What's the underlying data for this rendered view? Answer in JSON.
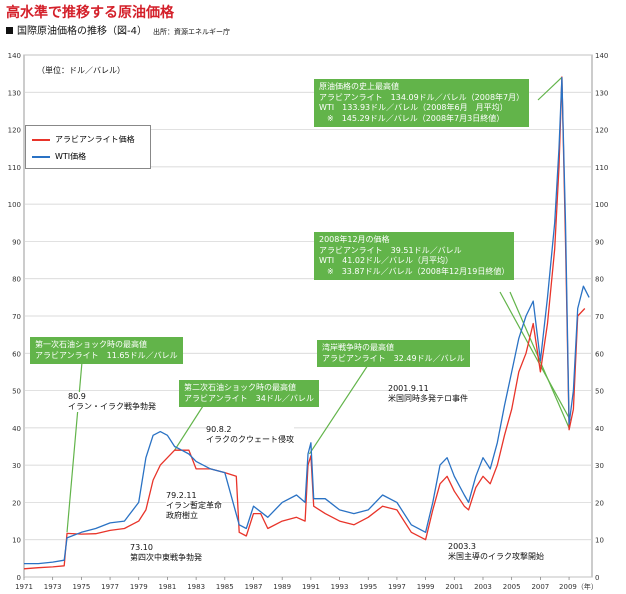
{
  "header": {
    "title": "高水準で推移する原油価格",
    "subtitle": "国際原油価格の推移（図-4）",
    "source": "出所：資源エネルギー庁"
  },
  "chart_data": {
    "type": "line",
    "unit_label": "（単位：ドル／バレル）",
    "ylim": [
      0,
      140
    ],
    "yticks": [
      0,
      10,
      20,
      30,
      40,
      50,
      60,
      70,
      80,
      90,
      100,
      110,
      120,
      130,
      140
    ],
    "xlim": [
      1971,
      2010.6
    ],
    "xticks": [
      1971,
      1973,
      1975,
      1977,
      1979,
      1981,
      1983,
      1985,
      1987,
      1989,
      1991,
      1993,
      1995,
      1997,
      1999,
      2001,
      2003,
      2005,
      2007
    ],
    "xtick_labels": [
      "1971",
      "1973",
      "1975",
      "1977",
      "1979",
      "1981",
      "1983",
      "1985",
      "1987",
      "1989",
      "1991",
      "1993",
      "1995",
      "1997",
      "1999",
      "2001",
      "2003",
      "2005",
      "2007"
    ],
    "x_last_label": "2009（年）",
    "grid": true,
    "legend_position": "upper-left",
    "series": [
      {
        "name": "アラビアンライト価格",
        "color": "#e8342a",
        "points": [
          [
            1971,
            2.2
          ],
          [
            1972,
            2.5
          ],
          [
            1973,
            2.7
          ],
          [
            1973.8,
            3.0
          ],
          [
            1974,
            11.7
          ],
          [
            1975,
            11.5
          ],
          [
            1976,
            11.6
          ],
          [
            1977,
            12.5
          ],
          [
            1978,
            13
          ],
          [
            1979,
            15
          ],
          [
            1979.5,
            18
          ],
          [
            1980,
            26
          ],
          [
            1980.5,
            30
          ],
          [
            1981,
            32
          ],
          [
            1981.5,
            34
          ],
          [
            1982,
            34
          ],
          [
            1982.5,
            34
          ],
          [
            1983,
            29
          ],
          [
            1984,
            29
          ],
          [
            1985,
            28
          ],
          [
            1985.8,
            27
          ],
          [
            1986,
            12
          ],
          [
            1986.5,
            11
          ],
          [
            1987,
            17
          ],
          [
            1987.5,
            17
          ],
          [
            1988,
            13
          ],
          [
            1989,
            15
          ],
          [
            1990,
            16
          ],
          [
            1990.6,
            15
          ],
          [
            1990.8,
            30
          ],
          [
            1991,
            32.5
          ],
          [
            1991.2,
            19
          ],
          [
            1992,
            17
          ],
          [
            1993,
            15
          ],
          [
            1994,
            14
          ],
          [
            1995,
            16
          ],
          [
            1996,
            19
          ],
          [
            1997,
            18
          ],
          [
            1998,
            12
          ],
          [
            1999,
            10
          ],
          [
            1999.5,
            18
          ],
          [
            2000,
            25
          ],
          [
            2000.5,
            27
          ],
          [
            2001,
            23
          ],
          [
            2001.7,
            19
          ],
          [
            2002,
            18
          ],
          [
            2002.5,
            24
          ],
          [
            2003,
            27
          ],
          [
            2003.5,
            25
          ],
          [
            2004,
            30
          ],
          [
            2004.5,
            38
          ],
          [
            2005,
            45
          ],
          [
            2005.5,
            55
          ],
          [
            2006,
            60
          ],
          [
            2006.5,
            68
          ],
          [
            2007,
            55
          ],
          [
            2007.5,
            68
          ],
          [
            2008,
            88
          ],
          [
            2008.3,
            110
          ],
          [
            2008.5,
            134.1
          ],
          [
            2008.75,
            90
          ],
          [
            2009,
            39.5
          ],
          [
            2009.3,
            45
          ],
          [
            2009.6,
            70
          ],
          [
            2010.1,
            72
          ]
        ]
      },
      {
        "name": "WTI価格",
        "color": "#2a72c4",
        "points": [
          [
            1971,
            3.6
          ],
          [
            1972,
            3.6
          ],
          [
            1973,
            4.0
          ],
          [
            1973.8,
            4.5
          ],
          [
            1974,
            10.5
          ],
          [
            1975,
            12.0
          ],
          [
            1976,
            13
          ],
          [
            1977,
            14.5
          ],
          [
            1978,
            15
          ],
          [
            1979,
            20
          ],
          [
            1979.5,
            32
          ],
          [
            1980,
            38
          ],
          [
            1980.5,
            39
          ],
          [
            1981,
            38
          ],
          [
            1981.5,
            35
          ],
          [
            1982,
            34
          ],
          [
            1982.5,
            33
          ],
          [
            1983,
            31
          ],
          [
            1984,
            29
          ],
          [
            1985,
            28
          ],
          [
            1986,
            14
          ],
          [
            1986.5,
            13
          ],
          [
            1987,
            19
          ],
          [
            1988,
            16
          ],
          [
            1989,
            20
          ],
          [
            1990,
            22
          ],
          [
            1990.6,
            20
          ],
          [
            1990.8,
            33
          ],
          [
            1991,
            36
          ],
          [
            1991.2,
            21
          ],
          [
            1992,
            21
          ],
          [
            1993,
            18
          ],
          [
            1994,
            17
          ],
          [
            1995,
            18
          ],
          [
            1996,
            22
          ],
          [
            1997,
            20
          ],
          [
            1998,
            14
          ],
          [
            1999,
            12
          ],
          [
            1999.5,
            20
          ],
          [
            2000,
            30
          ],
          [
            2000.5,
            32
          ],
          [
            2001,
            27
          ],
          [
            2001.7,
            22
          ],
          [
            2002,
            20
          ],
          [
            2002.5,
            27
          ],
          [
            2003,
            32
          ],
          [
            2003.5,
            29
          ],
          [
            2004,
            36
          ],
          [
            2004.5,
            46
          ],
          [
            2005,
            55
          ],
          [
            2005.5,
            64
          ],
          [
            2006,
            70
          ],
          [
            2006.5,
            74
          ],
          [
            2007,
            58
          ],
          [
            2007.5,
            75
          ],
          [
            2008,
            95
          ],
          [
            2008.3,
            115
          ],
          [
            2008.5,
            133.9
          ],
          [
            2008.75,
            95
          ],
          [
            2009,
            41.0
          ],
          [
            2009.3,
            50
          ],
          [
            2009.6,
            72
          ],
          [
            2010,
            78
          ],
          [
            2010.4,
            75
          ]
        ]
      }
    ],
    "annotations": {
      "record": "原油価格の史上最高値\nアラビアンライト　134.09ドル／バレル（2008年7月）\nWTI　133.93ドル／バレル（2008年6月　月平均）\n　※　145.29ドル／バレル（2008年7月3日終値）",
      "dec2008": "2008年12月の価格\nアラビアンライト　39.51ドル／バレル\nWTI　41.02ドル／バレル（月平均）\n　※　33.87ドル／バレル（2008年12月19日終値）",
      "first_shock": "第一次石油ショック時の最高値\nアラビアンライト　11.65ドル／バレル",
      "second_shock": "第二次石油ショック時の最高値\nアラビアンライト　34ドル／バレル",
      "gulf_war": "湾岸戦争時の最高値\nアラビアンライト　32.49ドル／バレル",
      "iran_iraq": "80.9\nイラン・イラク戦争勃発",
      "kuwait": "90.8.2\nイラクのクウェート侵攻",
      "sept11": "2001.9.11\n米国同時多発テロ事件",
      "iran_rev": "79.2.11\nイラン暫定革命\n政府樹立",
      "yom_kippur": "73.10\n第四次中東戦争勃発",
      "iraq_war": "2003.3\n米国主導のイラク攻撃開始"
    }
  }
}
